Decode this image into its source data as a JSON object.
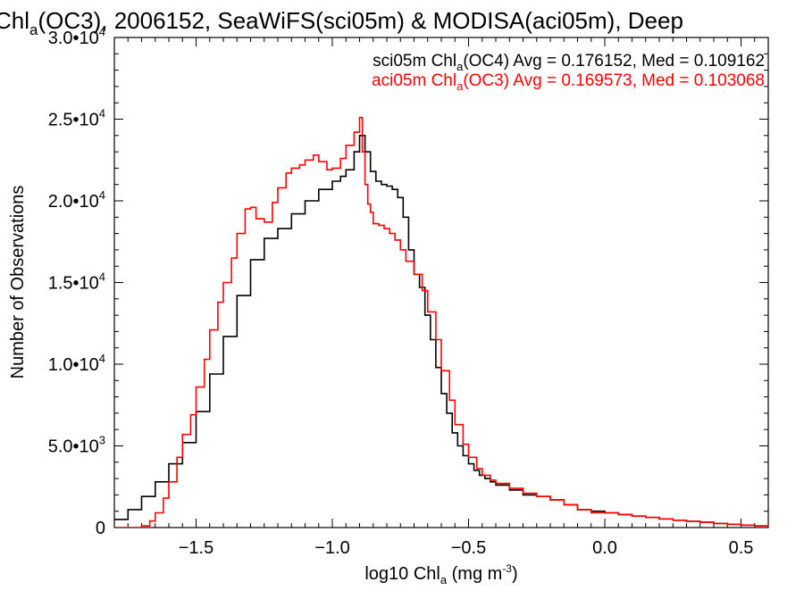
{
  "chart_data": {
    "type": "line",
    "title": {
      "pre": "Chl",
      "sub": "a",
      "post": "(OC3), 2006152, SeaWiFS(sci05m) & MODISA(aci05m), Deep"
    },
    "xlabel": {
      "pre": "log10 Chl",
      "sub": "a",
      "mid": " (mg m",
      "sup": "-3",
      "post": ")"
    },
    "ylabel": "Number of Observations",
    "xlim": [
      -1.8,
      0.6
    ],
    "ylim": [
      0,
      30000
    ],
    "x_ticks": [
      {
        "value": -1.5,
        "label": "−1.5"
      },
      {
        "value": -1.0,
        "label": "−1.0"
      },
      {
        "value": -0.5,
        "label": "−0.5"
      },
      {
        "value": 0.0,
        "label": "0.0"
      },
      {
        "value": 0.5,
        "label": "0.5"
      }
    ],
    "y_ticks": [
      {
        "value": 0,
        "mant": "0",
        "exp": ""
      },
      {
        "value": 5000,
        "mant": "5.0•10",
        "exp": "3"
      },
      {
        "value": 10000,
        "mant": "1.0•10",
        "exp": "4"
      },
      {
        "value": 15000,
        "mant": "1.5•10",
        "exp": "4"
      },
      {
        "value": 20000,
        "mant": "2.0•10",
        "exp": "4"
      },
      {
        "value": 25000,
        "mant": "2.5•10",
        "exp": "4"
      },
      {
        "value": 30000,
        "mant": "3.0•10",
        "exp": "4"
      }
    ],
    "annotations": [
      {
        "color": "#000000",
        "pre": "sci05m Chl",
        "sub": "a",
        "post": "(OC4) Avg = 0.176152, Med = 0.109162"
      },
      {
        "color": "#ff0000",
        "pre": "aci05m Chl",
        "sub": "a",
        "post": "(OC3) Avg = 0.169573, Med = 0.103068"
      }
    ],
    "series": [
      {
        "color": "#000000",
        "x": [
          -1.8,
          -1.75,
          -1.7,
          -1.65,
          -1.6,
          -1.55,
          -1.5,
          -1.45,
          -1.4,
          -1.35,
          -1.3,
          -1.25,
          -1.2,
          -1.15,
          -1.1,
          -1.05,
          -1.0,
          -0.97,
          -0.95,
          -0.92,
          -0.9,
          -0.88,
          -0.86,
          -0.84,
          -0.82,
          -0.8,
          -0.78,
          -0.76,
          -0.74,
          -0.72,
          -0.7,
          -0.68,
          -0.66,
          -0.64,
          -0.62,
          -0.6,
          -0.58,
          -0.56,
          -0.54,
          -0.52,
          -0.5,
          -0.48,
          -0.46,
          -0.44,
          -0.42,
          -0.4,
          -0.35,
          -0.3,
          -0.25,
          -0.2,
          -0.15,
          -0.1,
          -0.05,
          0.0,
          0.05,
          0.1,
          0.15,
          0.2,
          0.25,
          0.3,
          0.35,
          0.4,
          0.45,
          0.5,
          0.55,
          0.6
        ],
        "y": [
          500,
          1100,
          1900,
          2800,
          3900,
          5200,
          7100,
          9400,
          11700,
          14200,
          16400,
          17700,
          18300,
          19200,
          20000,
          20700,
          21200,
          21500,
          21900,
          23000,
          24000,
          23000,
          21800,
          21200,
          21000,
          20900,
          20700,
          20200,
          19000,
          17000,
          15500,
          14700,
          13000,
          11500,
          9800,
          8200,
          7000,
          5800,
          5000,
          4400,
          3900,
          3500,
          3200,
          3000,
          2800,
          2600,
          2300,
          2000,
          1900,
          1700,
          1400,
          1100,
          1000,
          900,
          800,
          700,
          620,
          530,
          450,
          380,
          320,
          250,
          200,
          150,
          100,
          50
        ]
      },
      {
        "color": "#ff0000",
        "x": [
          -1.8,
          -1.75,
          -1.72,
          -1.7,
          -1.67,
          -1.65,
          -1.62,
          -1.6,
          -1.57,
          -1.55,
          -1.52,
          -1.5,
          -1.47,
          -1.45,
          -1.42,
          -1.4,
          -1.37,
          -1.35,
          -1.32,
          -1.3,
          -1.28,
          -1.25,
          -1.22,
          -1.2,
          -1.17,
          -1.15,
          -1.12,
          -1.1,
          -1.07,
          -1.05,
          -1.02,
          -1.0,
          -0.97,
          -0.95,
          -0.92,
          -0.9,
          -0.89,
          -0.88,
          -0.87,
          -0.86,
          -0.85,
          -0.83,
          -0.81,
          -0.79,
          -0.77,
          -0.75,
          -0.73,
          -0.7,
          -0.67,
          -0.65,
          -0.62,
          -0.6,
          -0.57,
          -0.55,
          -0.52,
          -0.5,
          -0.47,
          -0.45,
          -0.42,
          -0.4,
          -0.35,
          -0.3,
          -0.25,
          -0.2,
          -0.15,
          -0.1,
          -0.05,
          0.0,
          0.05,
          0.1,
          0.15,
          0.2,
          0.25,
          0.3,
          0.35,
          0.4,
          0.45,
          0.5,
          0.55,
          0.6
        ],
        "y": [
          0,
          0,
          0,
          100,
          400,
          900,
          1800,
          2800,
          4300,
          5700,
          6900,
          8600,
          10300,
          12100,
          13800,
          15000,
          16500,
          18000,
          19500,
          19600,
          18900,
          18700,
          19900,
          20800,
          21700,
          22000,
          22200,
          22500,
          22800,
          22400,
          21900,
          22000,
          22600,
          23400,
          24200,
          25100,
          23000,
          21000,
          19800,
          19300,
          18600,
          18500,
          18300,
          18000,
          17600,
          17000,
          16300,
          15500,
          14500,
          13200,
          11500,
          9600,
          7800,
          6300,
          5100,
          4300,
          3600,
          3200,
          2900,
          2700,
          2400,
          2100,
          1900,
          1700,
          1400,
          1100,
          900,
          900,
          800,
          700,
          620,
          530,
          450,
          380,
          320,
          250,
          200,
          150,
          100,
          50
        ]
      }
    ]
  }
}
